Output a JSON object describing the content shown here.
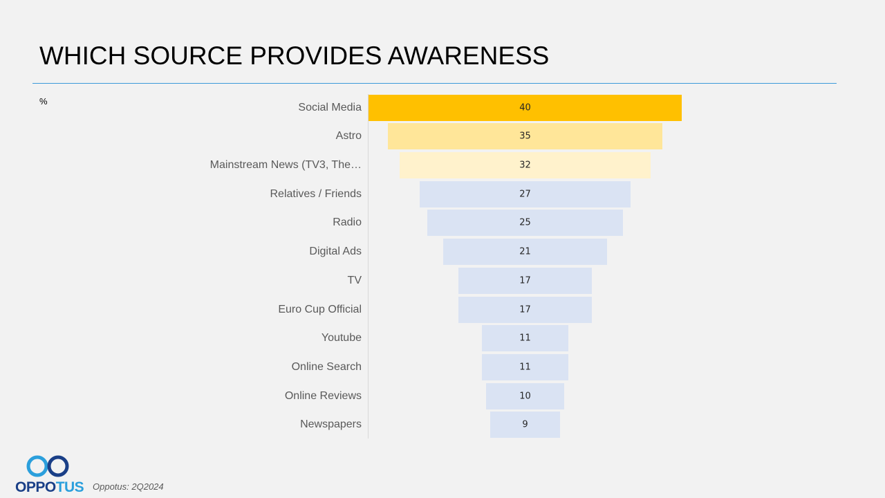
{
  "title": "WHICH SOURCE PROVIDES AWARENESS",
  "unit_label": "%",
  "footer": {
    "brand_part1": "OPPO",
    "brand_part2": "TUS",
    "source": "Oppotus: 2Q2024"
  },
  "colors": {
    "accent_rule": "#3a9ad9",
    "top1": "#ffc000",
    "top2": "#ffe699",
    "top3": "#fff2cc",
    "rest": "#dae3f3"
  },
  "chart_data": {
    "type": "bar",
    "subtype": "funnel (centered horizontal bars)",
    "title": "WHICH SOURCE PROVIDES AWARENESS",
    "xlabel": "",
    "ylabel": "%",
    "categories": [
      "Social Media",
      "Astro",
      "Mainstream News (TV3, The…",
      "Relatives / Friends",
      "Radio",
      "Digital Ads",
      "TV",
      "Euro Cup Official",
      "Youtube",
      "Online Search",
      "Online Reviews",
      "Newspapers"
    ],
    "values": [
      40,
      35,
      32,
      27,
      25,
      21,
      17,
      17,
      11,
      11,
      10,
      9
    ],
    "xlim": [
      0,
      40
    ],
    "grid": false,
    "legend": "none",
    "data_labels": true
  }
}
